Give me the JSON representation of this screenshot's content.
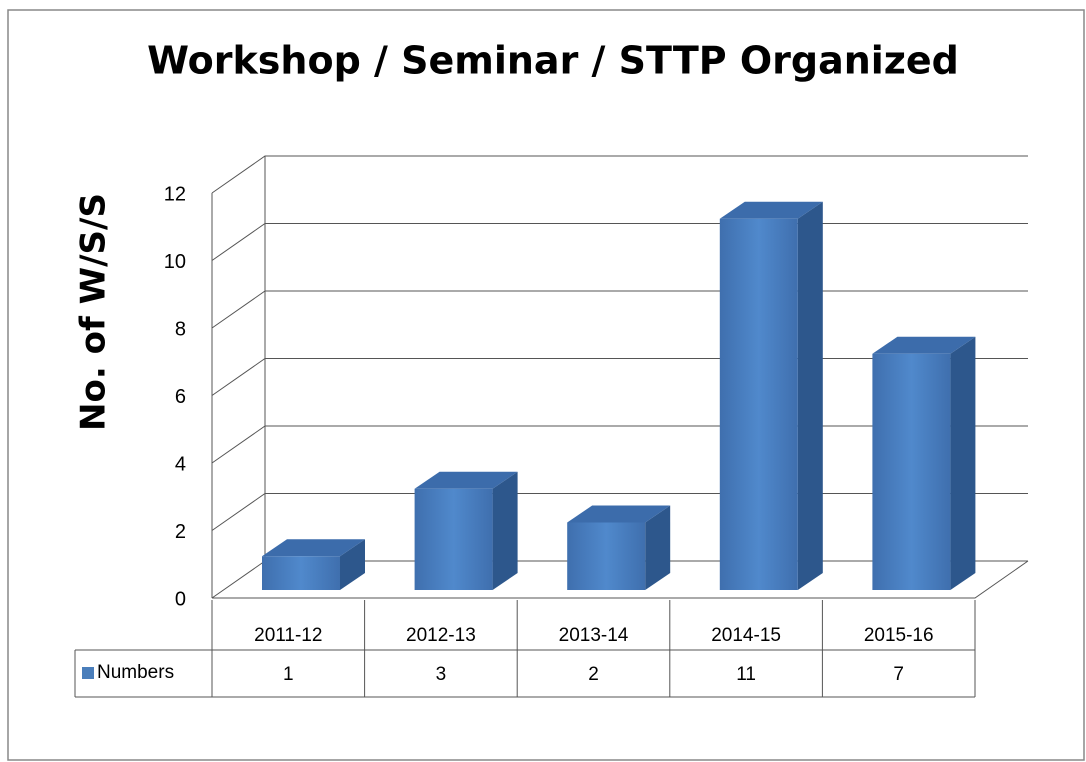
{
  "chart_data": {
    "type": "bar3d",
    "title": "Workshop / Seminar / STTP  Organized",
    "ylabel": "No. of W/S/S",
    "categories": [
      "2011-12",
      "2012-13",
      "2013-14",
      "2014-15",
      "2015-16"
    ],
    "series": [
      {
        "name": "Numbers",
        "color": "#4a7ebb",
        "values": [
          1,
          3,
          2,
          11,
          7
        ]
      }
    ],
    "ylim": [
      0,
      12
    ],
    "yticks": [
      0,
      2,
      4,
      6,
      8,
      10,
      12
    ],
    "grid": true,
    "data_table": true
  }
}
